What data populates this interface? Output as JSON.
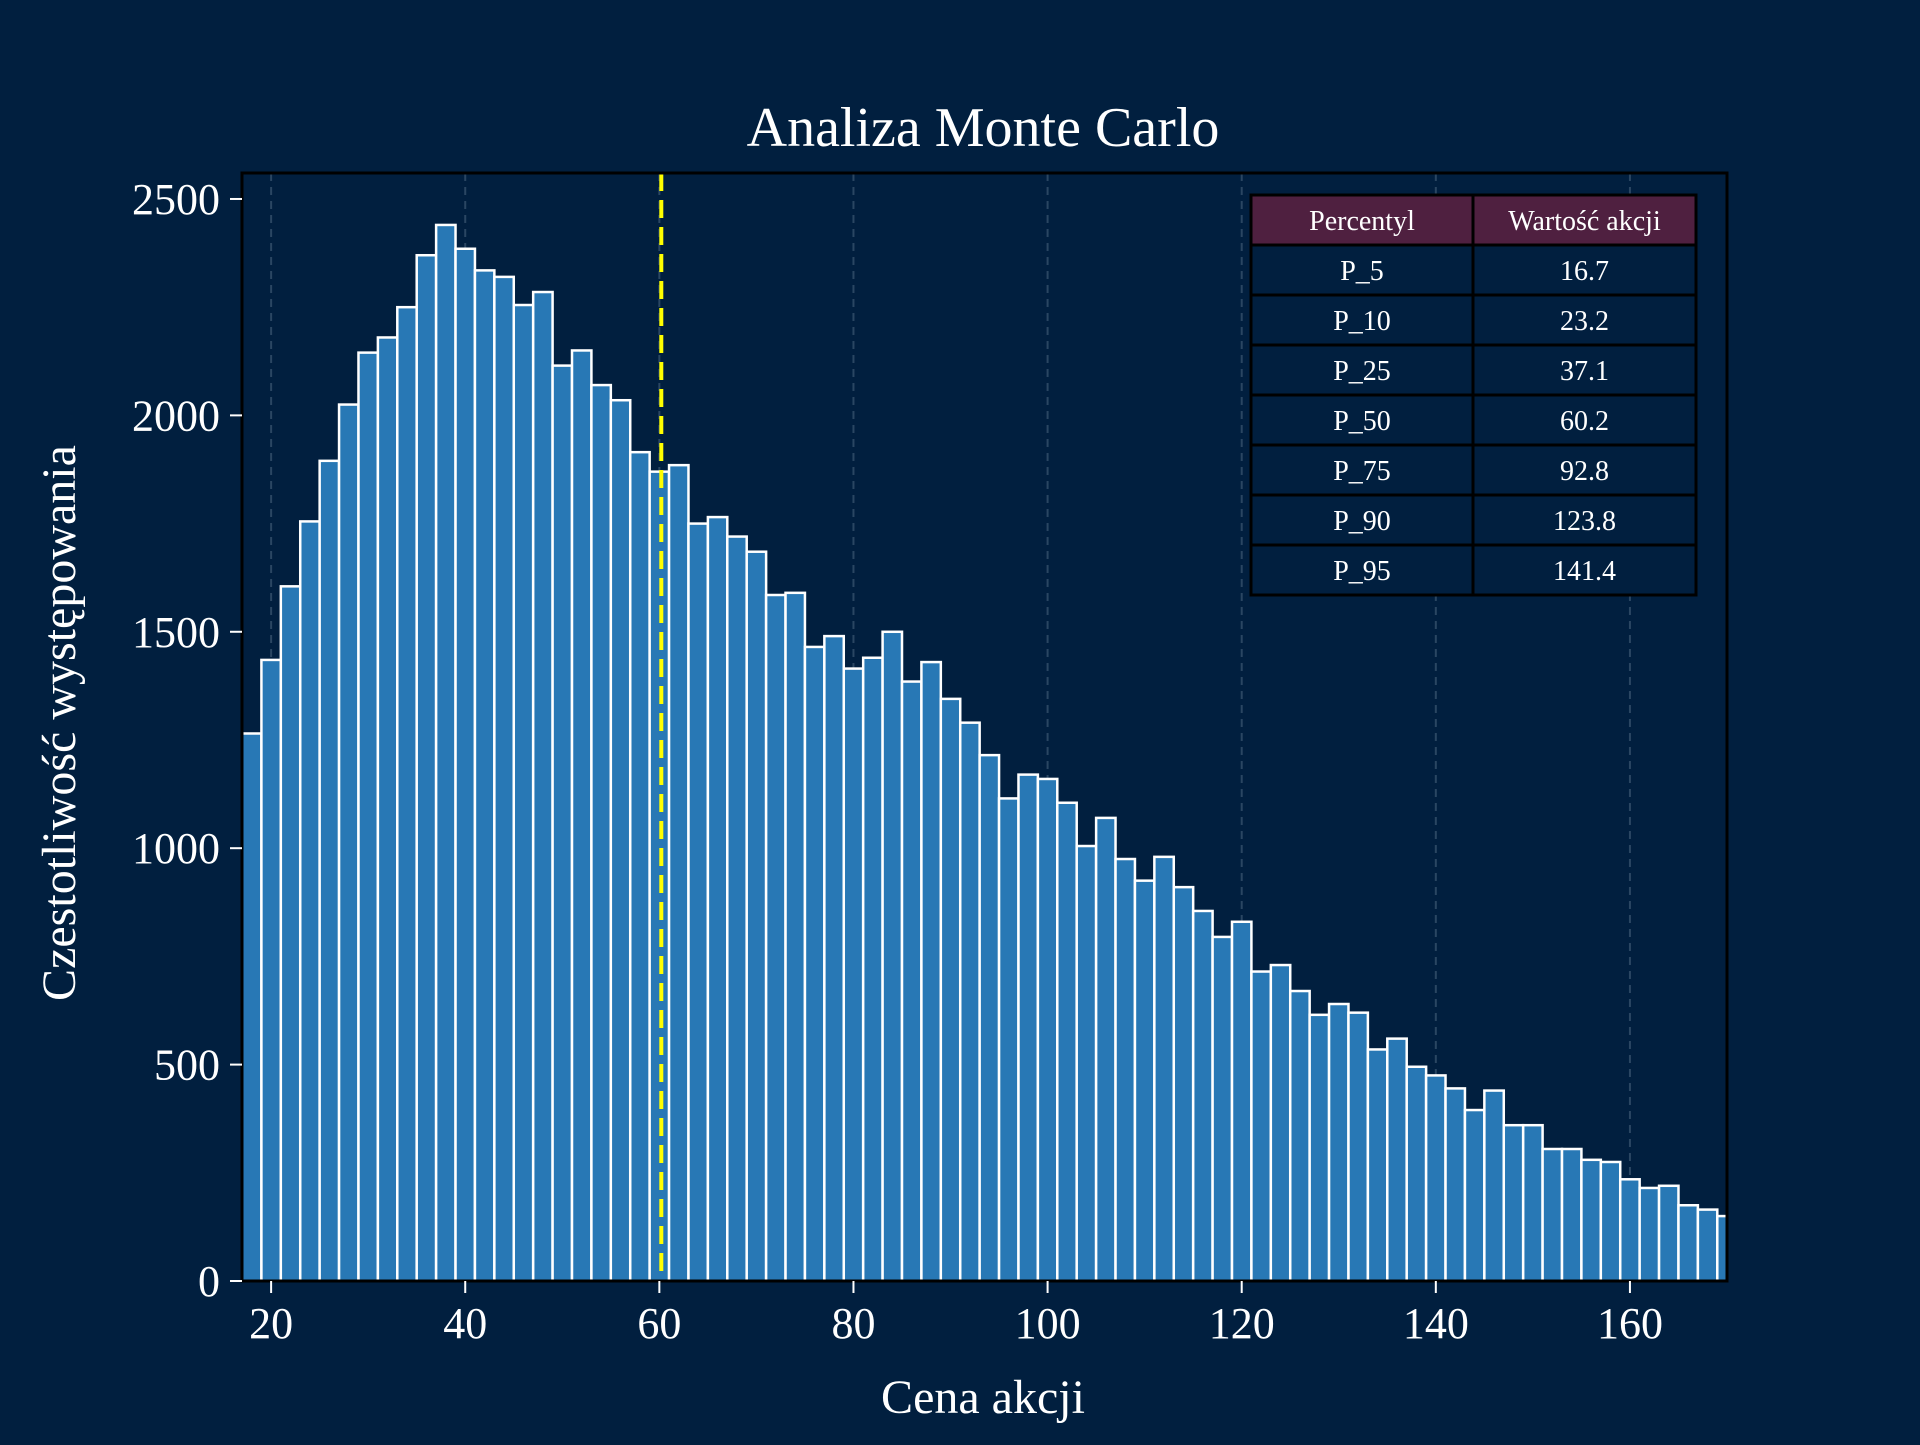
{
  "chart_data": {
    "type": "bar",
    "title": "Analiza Monte Carlo",
    "xlabel": "Cena akcji",
    "ylabel": "Czestotliwość występowania",
    "xlim": [
      17,
      170
    ],
    "ylim": [
      0,
      2560
    ],
    "xticks": [
      20,
      40,
      60,
      80,
      100,
      120,
      140,
      160
    ],
    "yticks": [
      0,
      500,
      1000,
      1500,
      2000,
      2500
    ],
    "grid": "vertical dashed",
    "bin_start": 17,
    "bin_width": 2,
    "values": [
      1265,
      1435,
      1605,
      1755,
      1895,
      2025,
      2145,
      2180,
      2250,
      2370,
      2440,
      2385,
      2335,
      2320,
      2255,
      2285,
      2115,
      2150,
      2070,
      2035,
      1915,
      1870,
      1885,
      1750,
      1765,
      1720,
      1685,
      1585,
      1590,
      1465,
      1490,
      1415,
      1440,
      1500,
      1385,
      1430,
      1345,
      1290,
      1215,
      1115,
      1170,
      1160,
      1105,
      1005,
      1070,
      975,
      925,
      980,
      910,
      855,
      795,
      830,
      715,
      730,
      670,
      615,
      640,
      620,
      535,
      560,
      495,
      475,
      445,
      395,
      440,
      360,
      360,
      305,
      305,
      280,
      275,
      235,
      215,
      220,
      175,
      165,
      150
    ],
    "reference_line": {
      "x": 60.2,
      "style": "dashed",
      "color": "#ffff00"
    },
    "colors": {
      "bar_fill": "#2878b5",
      "bar_edge": "#ffffff",
      "background": "#011f3f",
      "header": "#4f2040"
    },
    "table": {
      "placement": "top-right",
      "headers": [
        "Percentyl",
        "Wartość akcji"
      ],
      "rows": [
        [
          "P_5",
          "16.7"
        ],
        [
          "P_10",
          "23.2"
        ],
        [
          "P_25",
          "37.1"
        ],
        [
          "P_50",
          "60.2"
        ],
        [
          "P_75",
          "92.8"
        ],
        [
          "P_90",
          "123.8"
        ],
        [
          "P_95",
          "141.4"
        ]
      ]
    }
  }
}
